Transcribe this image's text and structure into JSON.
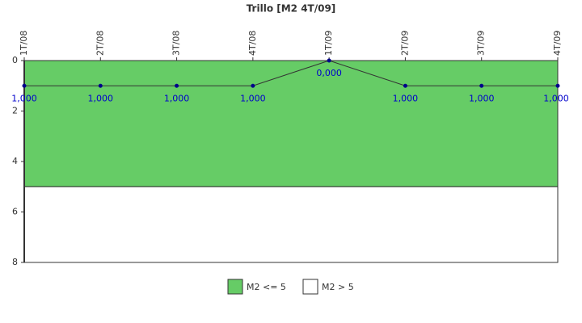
{
  "chart_data": {
    "type": "line",
    "title": "Trillo [M2 4T/09]",
    "categories": [
      "1T/08",
      "2T/08",
      "3T/08",
      "4T/08",
      "1T/09",
      "2T/09",
      "3T/09",
      "4T/09"
    ],
    "values": [
      1,
      1,
      1,
      1,
      0,
      1,
      1,
      1
    ],
    "value_labels": [
      "1,000",
      "1,000",
      "1,000",
      "1,000",
      "0,000",
      "1,000",
      "1,000",
      "1,000"
    ],
    "color": "#00008b",
    "line_color": "#333333",
    "label_color": "#0000cc",
    "ylim": [
      0,
      8
    ],
    "yticks": [
      0,
      2,
      4,
      6,
      8
    ],
    "y_inverted": true,
    "bands": [
      {
        "name": "M2 <= 5",
        "color": "#66cc66",
        "range": [
          0,
          5
        ]
      },
      {
        "name": "M2 > 5",
        "color": "#ffffff",
        "range": [
          5,
          8
        ]
      }
    ]
  }
}
